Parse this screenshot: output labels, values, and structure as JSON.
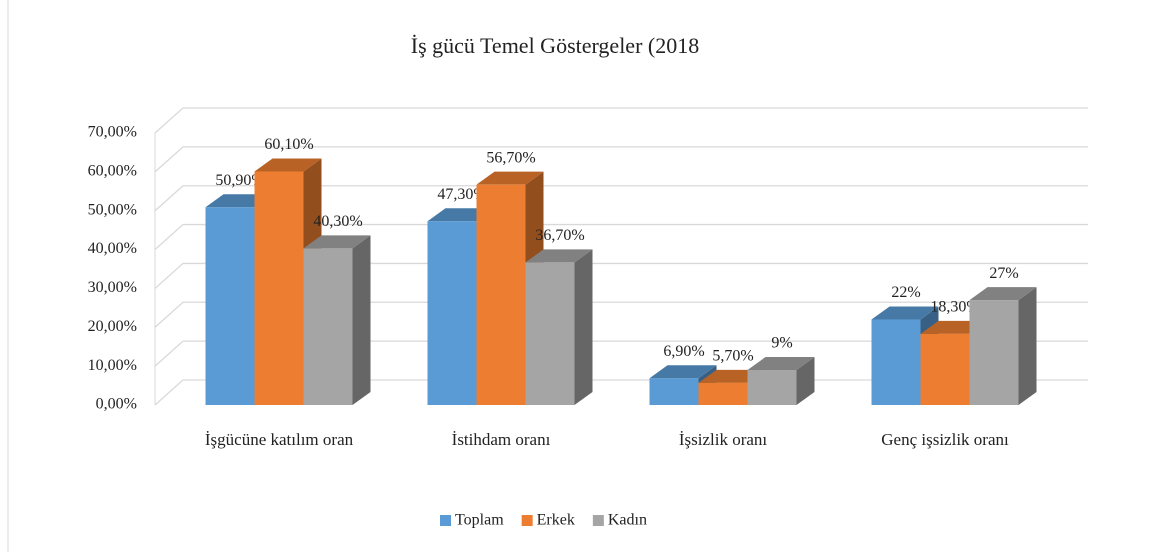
{
  "chart_data": {
    "type": "bar3d",
    "title": "İş gücü Temel Göstergeler (2018",
    "categories": [
      "İşgücüne katılım oran",
      "İstihdam oranı",
      "İşsizlik oranı",
      "Genç işsizlik oranı"
    ],
    "series": [
      {
        "name": "Toplam",
        "color": "#5b9bd5",
        "values": [
          50.9,
          47.3,
          6.9,
          22
        ],
        "value_labels": [
          "50,90%",
          "47,30%",
          "6,90%",
          "22%"
        ]
      },
      {
        "name": "Erkek",
        "color": "#ed7d31",
        "values": [
          60.1,
          56.7,
          5.7,
          18.3
        ],
        "value_labels": [
          "60,10%",
          "56,70%",
          "5,70%",
          "18,30%"
        ]
      },
      {
        "name": "Kadın",
        "color": "#a5a5a5",
        "values": [
          40.3,
          36.7,
          9,
          27
        ],
        "value_labels": [
          "40,30%",
          "36,70%",
          "9%",
          "27%"
        ]
      }
    ],
    "ylim": [
      0,
      70
    ],
    "yticks": [
      {
        "value": 0,
        "label": "0,00%"
      },
      {
        "value": 10,
        "label": "10,00%"
      },
      {
        "value": 20,
        "label": "20,00%"
      },
      {
        "value": 30,
        "label": "30,00%"
      },
      {
        "value": 40,
        "label": "40,00%"
      },
      {
        "value": 50,
        "label": "50,00%"
      },
      {
        "value": 60,
        "label": "60,00%"
      },
      {
        "value": 70,
        "label": "70,00%"
      }
    ],
    "grid": true,
    "legend": "bottom"
  }
}
